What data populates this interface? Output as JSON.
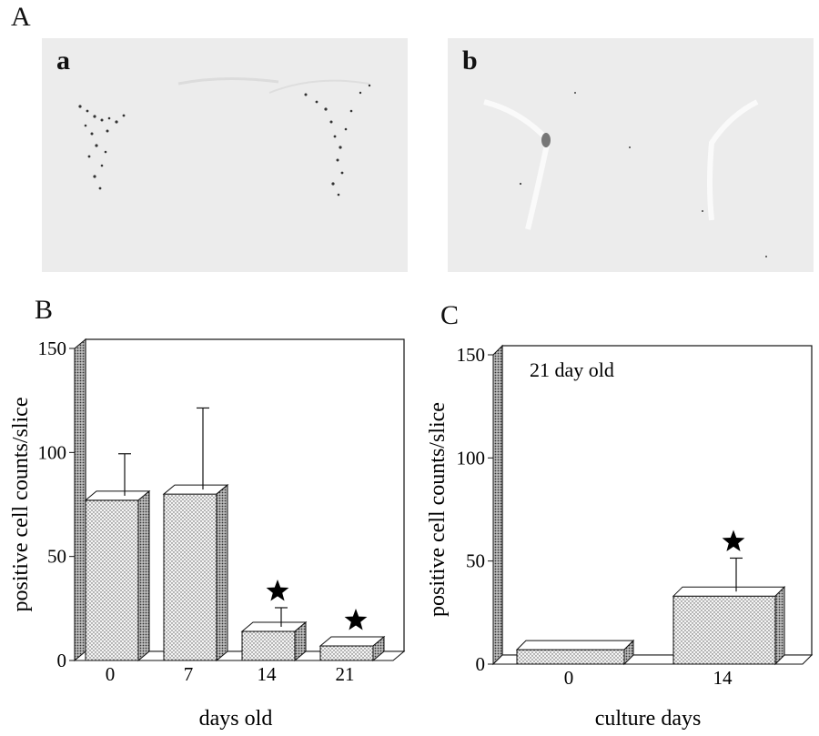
{
  "figure": {
    "panel_A_label": "A",
    "panel_B_label": "B",
    "panel_C_label": "C",
    "micrograph_a_label": "a",
    "micrograph_b_label": "b"
  },
  "chart_data": [
    {
      "type": "bar",
      "panel": "B",
      "xlabel": "days old",
      "ylabel": "positive cell counts/slice",
      "ylim": [
        0,
        150
      ],
      "yticks": [
        0,
        50,
        100,
        150
      ],
      "categories": [
        "0",
        "7",
        "14",
        "21"
      ],
      "values": [
        77,
        80,
        14,
        7
      ],
      "errors": [
        18,
        37,
        7,
        null
      ],
      "significant": [
        false,
        false,
        true,
        true
      ],
      "annotation": "",
      "grid": false,
      "legend": "none"
    },
    {
      "type": "bar",
      "panel": "C",
      "xlabel": "culture days",
      "ylabel": "positive cell counts/slice",
      "ylim": [
        0,
        150
      ],
      "yticks": [
        0,
        50,
        100,
        150
      ],
      "categories": [
        "0",
        "14"
      ],
      "values": [
        7,
        33
      ],
      "errors": [
        null,
        14
      ],
      "significant": [
        false,
        true
      ],
      "annotation": "21 day old",
      "grid": false,
      "legend": "none"
    }
  ]
}
